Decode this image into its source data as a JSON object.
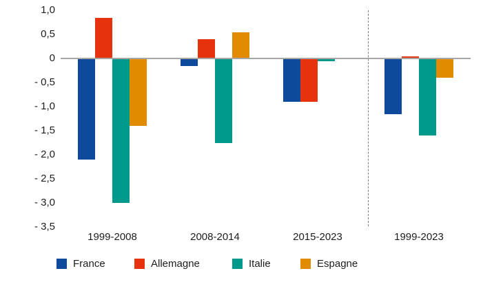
{
  "colors": {
    "axis_line": "#a6a6a6",
    "separator": "#7f7f7f",
    "text": "#1d1d1b",
    "france": "#0d4a9c",
    "allemagne": "#e7320e",
    "italie": "#009a8d",
    "espagne": "#e18b00"
  },
  "chart_data": {
    "type": "bar",
    "title": "",
    "categories": [
      "1999-2008",
      "2008-2014",
      "2015-2023",
      "1999-2023"
    ],
    "series": [
      {
        "name": "France",
        "color": "#0d4a9c",
        "values": [
          -2.1,
          -0.15,
          -0.9,
          -1.15
        ]
      },
      {
        "name": "Allemagne",
        "color": "#e7320e",
        "values": [
          0.85,
          0.4,
          -0.9,
          0.05
        ]
      },
      {
        "name": "Italie",
        "color": "#009a8d",
        "values": [
          -3.0,
          -1.75,
          -0.05,
          -1.6
        ]
      },
      {
        "name": "Espagne",
        "color": "#e18b00",
        "values": [
          -1.4,
          0.55,
          0.0,
          -0.4
        ]
      }
    ],
    "y_ticks": [
      "1,0",
      "0,5",
      "0",
      "- 0,5",
      "- 1,0",
      "- 1,5",
      "- 2,0",
      "- 2,5",
      "- 3,0",
      "- 3,5"
    ],
    "y_tick_values": [
      1.0,
      0.5,
      0.0,
      -0.5,
      -1.0,
      -1.5,
      -2.0,
      -2.5,
      -3.0,
      -3.5
    ],
    "ylim": [
      -3.5,
      1.0
    ],
    "grid": false,
    "zero_axis": true,
    "separator_after_category": "2015-2023",
    "legend_position": "bottom",
    "legend": [
      "France",
      "Allemagne",
      "Italie",
      "Espagne"
    ]
  }
}
